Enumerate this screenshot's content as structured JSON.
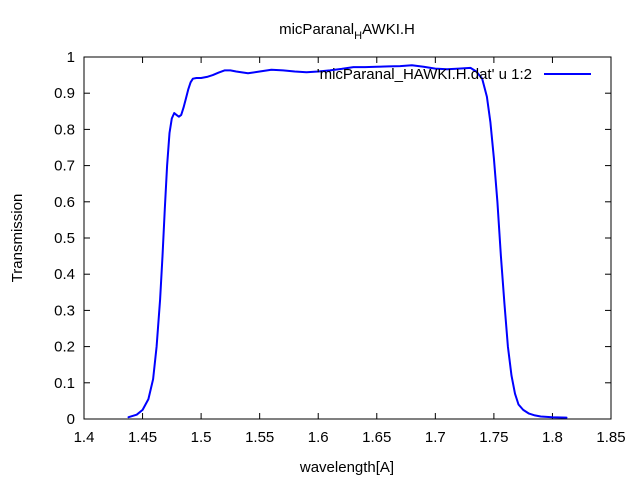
{
  "chart_data": {
    "type": "line",
    "title": {
      "main": "micParanal",
      "subscript": "H",
      "rest": "AWKI.H"
    },
    "xlabel": "wavelength[A]",
    "ylabel": "Transmission",
    "xlim": [
      1.4,
      1.85
    ],
    "ylim": [
      0,
      1
    ],
    "x_ticks": [
      "1.4",
      "1.45",
      "1.5",
      "1.55",
      "1.6",
      "1.65",
      "1.7",
      "1.75",
      "1.8",
      "1.85"
    ],
    "y_ticks": [
      "0",
      "0.1",
      "0.2",
      "0.3",
      "0.4",
      "0.5",
      "0.6",
      "0.7",
      "0.8",
      "0.9",
      "1"
    ],
    "grid": false,
    "legend_position": "top-right",
    "series": [
      {
        "name": "'micParanal_HAWKI.H.dat' u 1:2",
        "color": "#0000ff",
        "x": [
          1.438,
          1.445,
          1.45,
          1.455,
          1.459,
          1.462,
          1.465,
          1.467,
          1.469,
          1.471,
          1.473,
          1.475,
          1.477,
          1.479,
          1.481,
          1.483,
          1.485,
          1.487,
          1.489,
          1.491,
          1.493,
          1.496,
          1.5,
          1.505,
          1.51,
          1.515,
          1.52,
          1.525,
          1.53,
          1.54,
          1.55,
          1.56,
          1.57,
          1.58,
          1.59,
          1.6,
          1.61,
          1.62,
          1.63,
          1.64,
          1.65,
          1.66,
          1.67,
          1.68,
          1.69,
          1.7,
          1.71,
          1.72,
          1.73,
          1.735,
          1.74,
          1.744,
          1.747,
          1.75,
          1.753,
          1.756,
          1.759,
          1.762,
          1.765,
          1.768,
          1.771,
          1.775,
          1.78,
          1.785,
          1.79,
          1.8,
          1.812
        ],
        "y": [
          0.005,
          0.012,
          0.025,
          0.055,
          0.11,
          0.2,
          0.33,
          0.45,
          0.58,
          0.7,
          0.79,
          0.83,
          0.845,
          0.84,
          0.835,
          0.84,
          0.86,
          0.885,
          0.91,
          0.93,
          0.94,
          0.942,
          0.942,
          0.945,
          0.95,
          0.957,
          0.963,
          0.963,
          0.96,
          0.955,
          0.96,
          0.965,
          0.963,
          0.96,
          0.958,
          0.96,
          0.963,
          0.967,
          0.972,
          0.972,
          0.973,
          0.974,
          0.975,
          0.977,
          0.973,
          0.968,
          0.966,
          0.968,
          0.97,
          0.96,
          0.94,
          0.89,
          0.82,
          0.72,
          0.6,
          0.45,
          0.32,
          0.2,
          0.12,
          0.07,
          0.04,
          0.025,
          0.015,
          0.01,
          0.007,
          0.005,
          0.004
        ]
      }
    ]
  }
}
